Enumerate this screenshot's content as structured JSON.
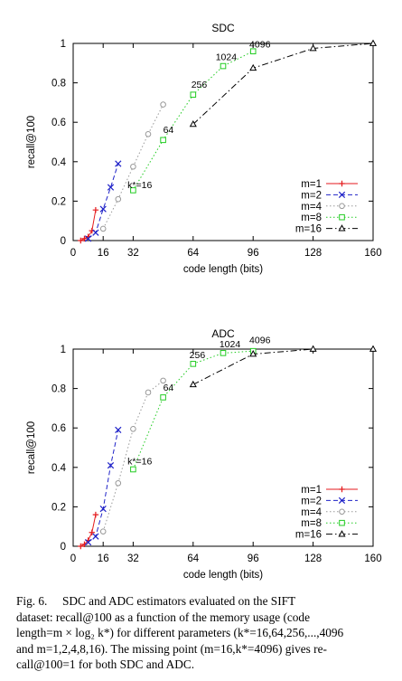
{
  "chart_data": [
    {
      "type": "line",
      "title": "SDC",
      "xlabel": "code length (bits)",
      "ylabel": "recall@100",
      "xlim": [
        0,
        160
      ],
      "ylim": [
        0,
        1
      ],
      "xticks": [
        0,
        16,
        32,
        64,
        96,
        128,
        160
      ],
      "yticks": [
        0,
        0.2,
        0.4,
        0.6,
        0.8,
        1
      ],
      "grid": false,
      "legend_position": "bottom-right",
      "series": [
        {
          "name": "m=1",
          "color": "#e41a1c",
          "marker": "plus",
          "dash": "solid",
          "x": [
            4,
            6,
            8,
            10,
            12
          ],
          "y": [
            0.0,
            0.01,
            0.02,
            0.05,
            0.155
          ]
        },
        {
          "name": "m=2",
          "color": "#1f22c8",
          "marker": "cross",
          "dash": "dashed",
          "x": [
            8,
            12,
            16,
            20,
            24
          ],
          "y": [
            0.01,
            0.04,
            0.16,
            0.27,
            0.39
          ]
        },
        {
          "name": "m=4",
          "color": "#999999",
          "marker": "circle",
          "dash": "dotted",
          "x": [
            16,
            24,
            32,
            40,
            48
          ],
          "y": [
            0.06,
            0.21,
            0.375,
            0.54,
            0.69
          ]
        },
        {
          "name": "m=8",
          "color": "#22cc22",
          "marker": "square",
          "dash": "dotted",
          "x": [
            32,
            48,
            64,
            80,
            96
          ],
          "y": [
            0.255,
            0.51,
            0.74,
            0.885,
            0.96
          ]
        },
        {
          "name": "m=16",
          "color": "#000000",
          "marker": "triangle",
          "dash": "dashdot",
          "x": [
            64,
            96,
            128,
            160
          ],
          "y": [
            0.59,
            0.875,
            0.975,
            1.0
          ]
        }
      ],
      "annotations": [
        {
          "text": "k*=16",
          "x": 29,
          "y": 0.265
        },
        {
          "text": "64",
          "x": 48,
          "y": 0.545
        },
        {
          "text": "256",
          "x": 63,
          "y": 0.775
        },
        {
          "text": "1024",
          "x": 76,
          "y": 0.915
        },
        {
          "text": "4096",
          "x": 94,
          "y": 0.98
        }
      ]
    },
    {
      "type": "line",
      "title": "ADC",
      "xlabel": "code length (bits)",
      "ylabel": "recall@100",
      "xlim": [
        0,
        160
      ],
      "ylim": [
        0,
        1
      ],
      "xticks": [
        0,
        16,
        32,
        64,
        96,
        128,
        160
      ],
      "yticks": [
        0,
        0.2,
        0.4,
        0.6,
        0.8,
        1
      ],
      "grid": false,
      "legend_position": "bottom-right",
      "series": [
        {
          "name": "m=1",
          "color": "#e41a1c",
          "marker": "plus",
          "dash": "solid",
          "x": [
            4,
            6,
            8,
            10,
            12
          ],
          "y": [
            0.0,
            0.01,
            0.03,
            0.07,
            0.16
          ]
        },
        {
          "name": "m=2",
          "color": "#1f22c8",
          "marker": "cross",
          "dash": "dashed",
          "x": [
            8,
            12,
            16,
            20,
            24
          ],
          "y": [
            0.02,
            0.05,
            0.19,
            0.41,
            0.59
          ]
        },
        {
          "name": "m=4",
          "color": "#999999",
          "marker": "circle",
          "dash": "dotted",
          "x": [
            16,
            24,
            32,
            40,
            48
          ],
          "y": [
            0.075,
            0.32,
            0.595,
            0.78,
            0.84
          ]
        },
        {
          "name": "m=8",
          "color": "#22cc22",
          "marker": "square",
          "dash": "dotted",
          "x": [
            32,
            48,
            64,
            80,
            96
          ],
          "y": [
            0.39,
            0.755,
            0.925,
            0.98,
            0.99
          ]
        },
        {
          "name": "m=16",
          "color": "#000000",
          "marker": "triangle",
          "dash": "dashdot",
          "x": [
            64,
            96,
            128,
            160
          ],
          "y": [
            0.82,
            0.975,
            1.0,
            1.0
          ]
        }
      ],
      "annotations": [
        {
          "text": "k*=16",
          "x": 29,
          "y": 0.415
        },
        {
          "text": "64",
          "x": 48,
          "y": 0.79
        },
        {
          "text": "256",
          "x": 62,
          "y": 0.955
        },
        {
          "text": "1024",
          "x": 78,
          "y": 1.01
        },
        {
          "text": "4096",
          "x": 94,
          "y": 1.03
        }
      ]
    }
  ],
  "caption": {
    "lines": [
      "Fig. 6.     SDC and ADC estimators evaluated on the SIFT",
      "dataset: recall@100 as a function of the memory usage (code",
      "length=m × log₂ k*) for different parameters (k*=16,64,256,...,4096",
      "and m=1,2,4,8,16). The missing point (m=16,k*=4096) gives re-",
      "call@100=1 for both SDC and ADC."
    ]
  }
}
